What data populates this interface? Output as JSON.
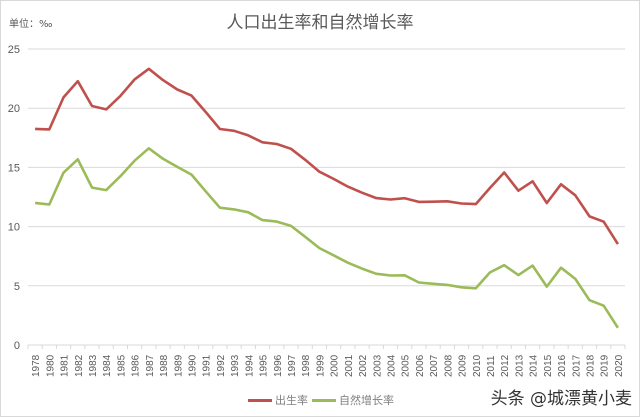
{
  "header": {
    "unit_label": "单位：‰",
    "title": "人口出生率和自然增长率"
  },
  "legend": {
    "series1": "出生率",
    "series2": "自然增长率"
  },
  "watermark": "头条 @城漂黄小麦",
  "colors": {
    "birth_rate": "#c0504d",
    "natural_growth": "#9bbb59",
    "grid": "#d9d9d9",
    "text": "#595959"
  },
  "chart_data": {
    "type": "line",
    "title": "人口出生率和自然增长率",
    "xlabel": "",
    "ylabel": "单位：‰",
    "ylim": [
      0,
      25
    ],
    "yticks": [
      0,
      5,
      10,
      15,
      20,
      25
    ],
    "grid": true,
    "legend_position": "bottom",
    "categories": [
      "1978",
      "1980",
      "1981",
      "1982",
      "1983",
      "1984",
      "1985",
      "1986",
      "1987",
      "1988",
      "1989",
      "1990",
      "1991",
      "1992",
      "1993",
      "1994",
      "1995",
      "1996",
      "1997",
      "1998",
      "1999",
      "2000",
      "2001",
      "2002",
      "2003",
      "2004",
      "2005",
      "2006",
      "2007",
      "2008",
      "2009",
      "2010",
      "2011",
      "2012",
      "2013",
      "2014",
      "2015",
      "2016",
      "2017",
      "2018",
      "2019",
      "2020"
    ],
    "series": [
      {
        "name": "出生率",
        "color": "#c0504d",
        "values": [
          18.25,
          18.21,
          20.91,
          22.28,
          20.19,
          19.9,
          21.04,
          22.43,
          23.33,
          22.37,
          21.58,
          21.06,
          19.68,
          18.24,
          18.09,
          17.7,
          17.12,
          16.98,
          16.57,
          15.64,
          14.64,
          14.03,
          13.38,
          12.86,
          12.41,
          12.29,
          12.4,
          12.09,
          12.1,
          12.14,
          11.95,
          11.9,
          13.27,
          14.57,
          13.03,
          13.83,
          11.99,
          13.57,
          12.64,
          10.86,
          10.41,
          8.52
        ]
      },
      {
        "name": "自然增长率",
        "color": "#9bbb59",
        "values": [
          12.0,
          11.87,
          14.55,
          15.68,
          13.29,
          13.08,
          14.26,
          15.57,
          16.61,
          15.73,
          15.04,
          14.39,
          12.98,
          11.6,
          11.45,
          11.21,
          10.55,
          10.42,
          10.06,
          9.14,
          8.18,
          7.58,
          6.95,
          6.45,
          6.01,
          5.87,
          5.89,
          5.28,
          5.17,
          5.08,
          4.87,
          4.79,
          6.13,
          6.74,
          5.9,
          6.71,
          4.93,
          6.53,
          5.58,
          3.78,
          3.32,
          1.45
        ]
      }
    ]
  }
}
